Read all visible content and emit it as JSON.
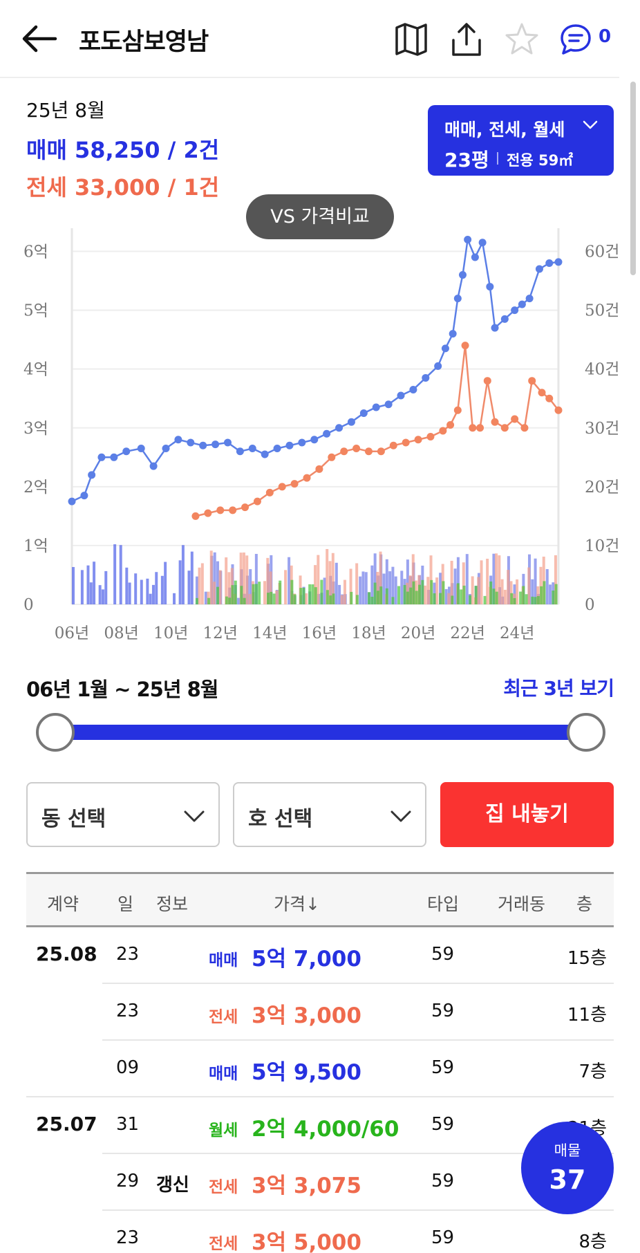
{
  "header": {
    "title": "포도삼보영남",
    "chat_count": "0"
  },
  "summary": {
    "year_month": "25년 8월",
    "sale": "매매 58,250 / 2건",
    "jeonse": "전세 33,000 / 1건"
  },
  "filter": {
    "types": "매매, 전세, 월세",
    "size": "23평",
    "area": "전용 59㎡"
  },
  "compare_button": "VS 가격비교",
  "colors": {
    "sale": "#2631e0",
    "sale_line": "#5b7fe6",
    "jeonse": "#ef6a4d",
    "jeonse_line": "#f08a6a",
    "wolse": "#28b41c",
    "action": "#fa3331"
  },
  "chart_data": {
    "type": "line",
    "x_tick_labels": [
      "06년",
      "08년",
      "10년",
      "12년",
      "14년",
      "16년",
      "18년",
      "20년",
      "22년",
      "24년"
    ],
    "x_range": [
      2006.0,
      2025.67
    ],
    "y_left_ticks": [
      "0",
      "1억",
      "2억",
      "3억",
      "4억",
      "5억",
      "6억"
    ],
    "y_left_range_eok": [
      0,
      6.3
    ],
    "y_right_ticks": [
      "0",
      "10건",
      "20건",
      "30건",
      "40건",
      "50건",
      "60건"
    ],
    "y_right_range_count": [
      0,
      60
    ],
    "grid": true,
    "series": [
      {
        "kind": "sale",
        "x": [
          2006.0,
          2006.5,
          2006.8,
          2007.2,
          2007.7,
          2008.2,
          2008.8,
          2009.3,
          2009.8,
          2010.3,
          2010.8,
          2011.3,
          2011.8,
          2012.3,
          2012.8,
          2013.3,
          2013.8,
          2014.3,
          2014.8,
          2015.3,
          2015.8,
          2016.3,
          2016.8,
          2017.3,
          2017.8,
          2018.3,
          2018.8,
          2019.3,
          2019.8,
          2020.3,
          2020.8,
          2021.1,
          2021.4,
          2021.6,
          2021.8,
          2022.0,
          2022.3,
          2022.6,
          2022.9,
          2023.1,
          2023.5,
          2023.9,
          2024.2,
          2024.5,
          2024.9,
          2025.3,
          2025.67
        ],
        "values": [
          1.75,
          1.85,
          2.2,
          2.5,
          2.5,
          2.6,
          2.65,
          2.35,
          2.65,
          2.8,
          2.75,
          2.7,
          2.72,
          2.75,
          2.6,
          2.65,
          2.55,
          2.65,
          2.7,
          2.75,
          2.8,
          2.9,
          3.0,
          3.1,
          3.25,
          3.35,
          3.4,
          3.55,
          3.65,
          3.85,
          4.05,
          4.35,
          4.6,
          5.2,
          5.6,
          6.2,
          5.9,
          6.15,
          5.4,
          4.7,
          4.85,
          5.0,
          5.1,
          5.2,
          5.7,
          5.8,
          5.82
        ]
      },
      {
        "kind": "jeonse",
        "x": [
          2011.0,
          2011.5,
          2012.0,
          2012.5,
          2013.0,
          2013.5,
          2014.0,
          2014.5,
          2015.0,
          2015.5,
          2016.0,
          2016.5,
          2017.0,
          2017.5,
          2018.0,
          2018.5,
          2019.0,
          2019.5,
          2020.0,
          2020.5,
          2021.0,
          2021.3,
          2021.6,
          2021.9,
          2022.2,
          2022.5,
          2022.8,
          2023.1,
          2023.5,
          2023.9,
          2024.3,
          2024.6,
          2025.0,
          2025.3,
          2025.67
        ],
        "values": [
          1.5,
          1.55,
          1.6,
          1.6,
          1.65,
          1.75,
          1.9,
          2.0,
          2.05,
          2.15,
          2.3,
          2.5,
          2.6,
          2.65,
          2.6,
          2.6,
          2.7,
          2.75,
          2.8,
          2.85,
          2.95,
          3.05,
          3.3,
          4.4,
          3.0,
          3.0,
          3.8,
          3.1,
          3.0,
          3.15,
          3.0,
          3.8,
          3.6,
          3.5,
          3.3
        ]
      }
    ]
  },
  "range": {
    "label": "06년 1월 ~ 25년 8월",
    "recent_link": "최근 3년 보기",
    "start_fraction": 0.0,
    "end_fraction": 1.0
  },
  "filters": {
    "dong_placeholder": "동 선택",
    "ho_placeholder": "호 선택",
    "list_button": "집 내놓기"
  },
  "table": {
    "headers": [
      "계약",
      "일",
      "정보",
      "가격↓",
      "타입",
      "거래동",
      "층"
    ],
    "rows": [
      {
        "month": "25.08",
        "day": "23",
        "info": "",
        "type": "매매",
        "kind": "sale",
        "price": "5억 7,000",
        "ptype": "59",
        "floor": "15층"
      },
      {
        "month": "",
        "day": "23",
        "info": "",
        "type": "전세",
        "kind": "jeonse",
        "price": "3억 3,000",
        "ptype": "59",
        "floor": "11층"
      },
      {
        "month": "",
        "day": "09",
        "info": "",
        "type": "매매",
        "kind": "sale",
        "price": "5억 9,500",
        "ptype": "59",
        "floor": "7층"
      },
      {
        "month": "25.07",
        "day": "31",
        "info": "",
        "type": "월세",
        "kind": "wolse",
        "price": "2억 4,000/60",
        "ptype": "59",
        "floor": "21층"
      },
      {
        "month": "",
        "day": "29",
        "info": "갱신",
        "type": "전세",
        "kind": "jeonse",
        "price": "3억 3,075",
        "ptype": "59",
        "floor": ""
      },
      {
        "month": "",
        "day": "23",
        "info": "",
        "type": "전세",
        "kind": "jeonse",
        "price": "3억 5,000",
        "ptype": "59",
        "floor": "8층"
      }
    ]
  },
  "fab": {
    "label": "매물",
    "count": "37"
  }
}
